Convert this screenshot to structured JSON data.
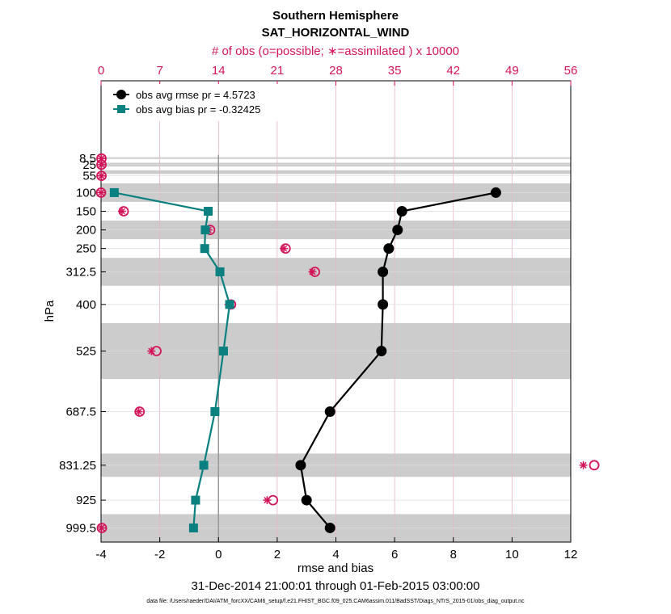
{
  "chart_data": {
    "type": "line",
    "title": "Southern Hemisphere",
    "subtitle": "SAT_HORIZONTAL_WIND",
    "top_xlabel": "# of obs (o=possible; ∗=assimilated ) x 10000",
    "xlabel": "rmse and bias",
    "ylabel": "hPa",
    "xlim": [
      -4,
      12
    ],
    "xticks": [
      "-4",
      "-2",
      "0",
      "2",
      "4",
      "6",
      "8",
      "10",
      "12"
    ],
    "top_xlim": [
      0,
      56
    ],
    "top_xticks": [
      "0",
      "7",
      "14",
      "21",
      "28",
      "35",
      "42",
      "49",
      "56"
    ],
    "levels": [
      8.5,
      25,
      55,
      100,
      150,
      200,
      250,
      312.5,
      400,
      525,
      687.5,
      831.25,
      925,
      999.5
    ],
    "level_labels": [
      "8.5",
      "25",
      "55",
      "100",
      "150",
      "200",
      "250",
      "312.5",
      "400",
      "525",
      "687.5",
      "831.25",
      "925",
      "999.5"
    ],
    "shaded_bands": [
      [
        5,
        10
      ],
      [
        20,
        30
      ],
      [
        40,
        50
      ],
      [
        75,
        125
      ],
      [
        175,
        225
      ],
      [
        275,
        350
      ],
      [
        450,
        600
      ],
      [
        800,
        862.5
      ],
      [
        962.5,
        1037.5
      ]
    ],
    "series": [
      {
        "name": "obs avg rmse",
        "legend": "obs avg rmse pr = 4.5723",
        "color": "#000000",
        "marker": "circle",
        "points": [
          {
            "level": 100,
            "value": 9.45
          },
          {
            "level": 150,
            "value": 6.25
          },
          {
            "level": 200,
            "value": 6.1
          },
          {
            "level": 250,
            "value": 5.8
          },
          {
            "level": 312.5,
            "value": 5.6
          },
          {
            "level": 400,
            "value": 5.6
          },
          {
            "level": 525,
            "value": 5.55
          },
          {
            "level": 687.5,
            "value": 3.8
          },
          {
            "level": 831.25,
            "value": 2.8
          },
          {
            "level": 925,
            "value": 3.0
          },
          {
            "level": 999.5,
            "value": 3.8
          }
        ]
      },
      {
        "name": "obs avg bias",
        "legend": "obs avg bias pr = -0.32425",
        "color": "#0a8080",
        "marker": "square",
        "points": [
          {
            "level": 100,
            "value": -3.55
          },
          {
            "level": 150,
            "value": -0.35
          },
          {
            "level": 200,
            "value": -0.45
          },
          {
            "level": 250,
            "value": -0.47
          },
          {
            "level": 312.5,
            "value": 0.05
          },
          {
            "level": 400,
            "value": 0.38
          },
          {
            "level": 525,
            "value": 0.17
          },
          {
            "level": 687.5,
            "value": -0.12
          },
          {
            "level": 831.25,
            "value": -0.5
          },
          {
            "level": 925,
            "value": -0.78
          },
          {
            "level": 999.5,
            "value": -0.85
          }
        ]
      }
    ],
    "obs_counts": [
      {
        "level": 8.5,
        "possible": 0.05,
        "assimilated": 0.05
      },
      {
        "level": 25,
        "possible": 0.05,
        "assimilated": 0.05
      },
      {
        "level": 55,
        "possible": 0.05,
        "assimilated": 0.05
      },
      {
        "level": 100,
        "possible": 0.0,
        "assimilated": 0.0
      },
      {
        "level": 150,
        "possible": 2.7,
        "assimilated": 2.5
      },
      {
        "level": 200,
        "possible": 13.0,
        "assimilated": 12.8
      },
      {
        "level": 250,
        "possible": 22.0,
        "assimilated": 21.8
      },
      {
        "level": 312.5,
        "possible": 25.5,
        "assimilated": 25.2
      },
      {
        "level": 400,
        "possible": 15.5,
        "assimilated": 15.2
      },
      {
        "level": 525,
        "possible": 6.6,
        "assimilated": 6.0
      },
      {
        "level": 687.5,
        "possible": 4.6,
        "assimilated": 4.5
      },
      {
        "level": 831.25,
        "possible": 58.8,
        "assimilated": 57.5
      },
      {
        "level": 925,
        "possible": 20.5,
        "assimilated": 19.8
      },
      {
        "level": 999.5,
        "possible": 0.1,
        "assimilated": 0.05
      }
    ],
    "date_range": "31-Dec-2014 21:00:01 through 01-Feb-2015 03:00:00",
    "data_file": "data file: /Users/raeder/DAI/ATM_forcXX/CAM6_setup/f.e21.FHIST_BGC.f09_025.CAM6assim.011/BadSST/Diags_NTrS_2015-01/obs_diag_output.nc"
  },
  "colors": {
    "accent": "#d4145a",
    "rmse": "#000000",
    "bias": "#0a8080",
    "band": "#cccccc"
  }
}
